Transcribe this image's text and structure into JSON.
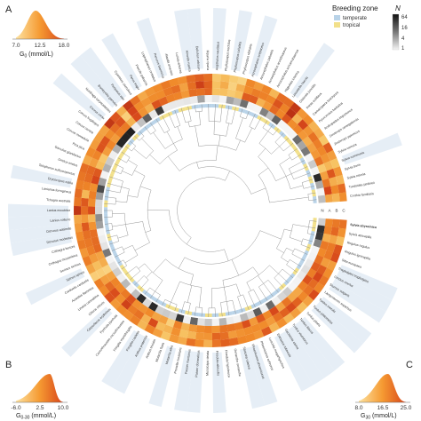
{
  "panels": {
    "A": {
      "letter": "A",
      "label": "G",
      "label_sub": "0",
      "label_unit": " (mmol/L)",
      "ticks": [
        "7.0",
        "12.5",
        "18.0"
      ],
      "tick_values": [
        7.0,
        12.5,
        18.0
      ],
      "range": [
        7.0,
        18.0
      ],
      "peak": 11.5
    },
    "B": {
      "letter": "B",
      "label": "G",
      "label_sub": "0-30",
      "label_unit": " (mmol/L)",
      "ticks": [
        "-6.0",
        "2.5",
        "10.0"
      ],
      "tick_values": [
        -6.0,
        2.5,
        10.0
      ],
      "range": [
        -6.0,
        10.0
      ],
      "peak": 5.5
    },
    "C": {
      "letter": "C",
      "label": "G",
      "label_sub": "30",
      "label_unit": " (mmol/L)",
      "ticks": [
        "8.0",
        "16.5",
        "25.0"
      ],
      "tick_values": [
        8.0,
        16.5,
        25.0
      ],
      "range": [
        8.0,
        25.0
      ],
      "peak": 18.5
    }
  },
  "legend": {
    "zone_title": "Breeding zone",
    "zones": [
      {
        "label": "temperate",
        "color": "#b9d3e8"
      },
      {
        "label": "tropical",
        "color": "#f2e08a"
      }
    ],
    "n_title": "N",
    "n_ticks": [
      "64",
      "16",
      "4",
      "1"
    ]
  },
  "ring_letters": [
    "N",
    "A",
    "B",
    "C"
  ],
  "colors": {
    "temperate": "#b9d3e8",
    "tropical": "#f2e08a",
    "heat_low": "#fff2c2",
    "heat_mid": "#f08a2a",
    "heat_high": "#b3200f",
    "tree": "#8a8a8a"
  },
  "chart_data": {
    "type": "heatmap",
    "layout": "circular-phylogeny",
    "rings": [
      "N",
      "A",
      "B",
      "C"
    ],
    "species": [
      "Sylvia abyssinica",
      "Sylvia atricapilla",
      "Regulus regulus",
      "Regulus ignicapilla",
      "Sitta europaea",
      "Troglodytes troglodytes",
      "Cinclus cinclus",
      "Sturnus vulgaris",
      "Lamprotornis superbus",
      "Turdus merula",
      "Turdus philomelos",
      "Turdus pilaris",
      "Turdus iliacus",
      "Turdus viscivorus",
      "Geokichla citrina",
      "Erithacus rubecula",
      "Luscinia megarhynchos",
      "Phoenicurus ochruros",
      "Phoenicurus phoenicurus",
      "Saxicola rubetra",
      "Oenanthe oenanthe",
      "Ficedula hypoleuca",
      "Ficedula albicollis",
      "Muscicapa striata",
      "Passer domesticus",
      "Passer montanus",
      "Prunella modularis",
      "Motacilla alba",
      "Motacilla flava",
      "Anthus trivialis",
      "Anthus pratensis",
      "Fringilla coelebs",
      "Fringilla montifringilla",
      "Coccothraustes coccothraustes",
      "Pyrrhula pyrrhula",
      "Carpodacus erythrinus",
      "Chloris chloris",
      "Linaria cannabina",
      "Acanthis flammea",
      "Carduelis carduelis",
      "Spinus spinus",
      "Serinus serinus",
      "Crithagra mozambica",
      "Crithagra burtoni",
      "Dicrurus modestus",
      "Dicrurus adsimilis",
      "Lanius collurio",
      "Lanius excubitor",
      "Tchagra australis",
      "Laniarius ferrugineus",
      "Dryoscopus cubla",
      "Telophorus sulfureopectus",
      "Oriolus oriolus",
      "Garrulus glandarius",
      "Pica pica",
      "Corvus monedula",
      "Corvus corone",
      "Corvus frugilegus",
      "Corvus corax",
      "Nucifraga caryocatactes",
      "Bombycilla garrulus",
      "Periparus ater",
      "Cyanistes caeruleus",
      "Parus major",
      "Poecile palustris",
      "Lophophanes cristatus",
      "Panurus biarmicus",
      "Alauda arvensis",
      "Lullula arborea",
      "Hirundo rustica",
      "Delichon urbicum",
      "Riparia riparia",
      "Aegithalos caudatus",
      "Phylloscopus trochilus",
      "Phylloscopus collybita",
      "Phylloscopus sibilatrix",
      "Acrocephalus scirpaceus",
      "Acrocephalus palustris",
      "Acrocephalus arundinaceus",
      "Acrocephalus schoenobaenus",
      "Hippolais icterina",
      "Locustella naevia",
      "Cisticola juncidis",
      "Prinia subflava",
      "Camaroptera brachyura",
      "Pycnonotus barbatus",
      "Andropadus importunus",
      "Zosterops senegalensis",
      "Zosterops japonicus",
      "Sylvia curruca",
      "Sylvia communis",
      "Sylvia borin",
      "Sylvia nisoria",
      "Turdoides jardineii",
      "Certhia familiaris"
    ],
    "panel_distributions": [
      {
        "panel": "A",
        "variable": "G0 (mmol/L)",
        "xlim": [
          7.0,
          18.0
        ],
        "mode": 11.5
      },
      {
        "panel": "B",
        "variable": "G0-30 (mmol/L)",
        "xlim": [
          -6.0,
          10.0
        ],
        "mode": 5.5
      },
      {
        "panel": "C",
        "variable": "G30 (mmol/L)",
        "xlim": [
          8.0,
          25.0
        ],
        "mode": 18.5
      }
    ]
  }
}
